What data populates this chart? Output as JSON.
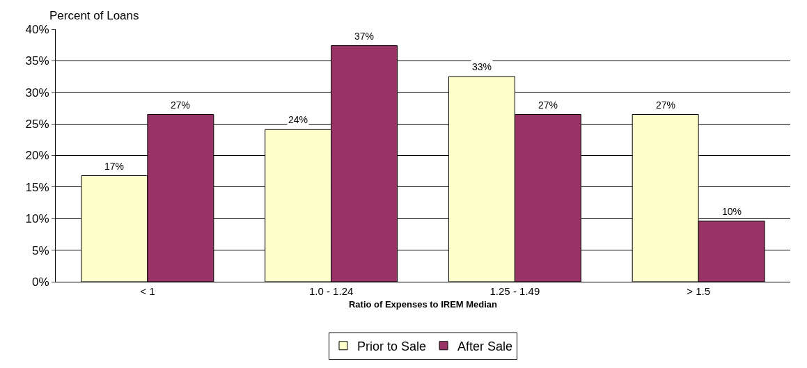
{
  "chart_data": {
    "type": "bar",
    "ylabel": "Percent of Loans",
    "xlabel": "Ratio of Expenses to IREM Median",
    "categories": [
      "< 1",
      "1.0 - 1.24",
      "1.25 - 1.49",
      "> 1.5"
    ],
    "series": [
      {
        "name": "Prior to Sale",
        "color": "#ffffcc",
        "values": [
          16.8,
          24.1,
          32.5,
          26.5
        ],
        "value_labels": [
          "17%",
          "24%",
          "33%",
          "27%"
        ]
      },
      {
        "name": "After Sale",
        "color": "#993366",
        "values": [
          26.5,
          37.4,
          26.5,
          9.6
        ],
        "value_labels": [
          "27%",
          "37%",
          "27%",
          "10%"
        ]
      }
    ],
    "ylim": [
      0,
      40
    ],
    "yticks": [
      {
        "value": 0,
        "label": "0%"
      },
      {
        "value": 5,
        "label": "5%"
      },
      {
        "value": 10,
        "label": "10%"
      },
      {
        "value": 15,
        "label": "15%"
      },
      {
        "value": 20,
        "label": "20%"
      },
      {
        "value": 25,
        "label": "25%"
      },
      {
        "value": 30,
        "label": "30%"
      },
      {
        "value": 35,
        "label": "35%"
      },
      {
        "value": 40,
        "label": "40%"
      }
    ],
    "grid": "y",
    "legend": "bottom"
  }
}
